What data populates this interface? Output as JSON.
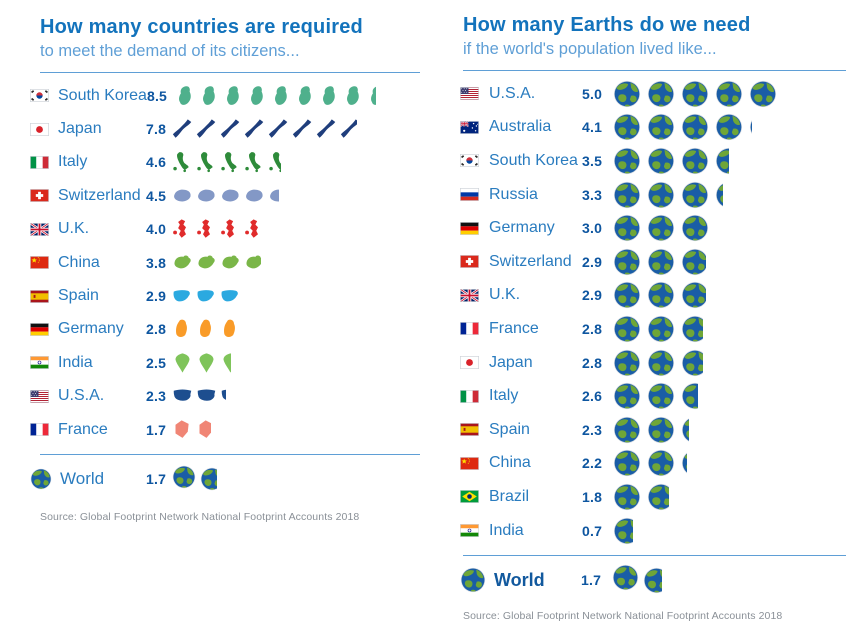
{
  "left_panel": {
    "title": "How many countries are required",
    "subtitle": "to meet the demand of its citizens...",
    "rows": [
      {
        "country": "South Korea",
        "value": "8.5",
        "flag": "south-korea",
        "icon": "korea-map",
        "color": "#4FB08C"
      },
      {
        "country": "Japan",
        "value": "7.8",
        "flag": "japan",
        "icon": "japan-map",
        "color": "#1F3E7C"
      },
      {
        "country": "Italy",
        "value": "4.6",
        "flag": "italy",
        "icon": "italy-map",
        "color": "#2E8B3A"
      },
      {
        "country": "Switzerland",
        "value": "4.5",
        "flag": "switzerland",
        "icon": "switzerland-map",
        "color": "#8398C6"
      },
      {
        "country": "U.K.",
        "value": "4.0",
        "flag": "uk",
        "icon": "uk-map",
        "color": "#E02B2B"
      },
      {
        "country": "China",
        "value": "3.8",
        "flag": "china",
        "icon": "china-map",
        "color": "#7AB648"
      },
      {
        "country": "Spain",
        "value": "2.9",
        "flag": "spain",
        "icon": "spain-map",
        "color": "#2BA9E0"
      },
      {
        "country": "Germany",
        "value": "2.8",
        "flag": "germany",
        "icon": "germany-map",
        "color": "#F99B28"
      },
      {
        "country": "India",
        "value": "2.5",
        "flag": "india",
        "icon": "india-map",
        "color": "#7FC45A"
      },
      {
        "country": "U.S.A.",
        "value": "2.3",
        "flag": "usa",
        "icon": "usa-map",
        "color": "#1D4E8F"
      },
      {
        "country": "France",
        "value": "1.7",
        "flag": "france",
        "icon": "france-map",
        "color": "#F08575"
      }
    ],
    "world": {
      "label": "World",
      "value": "1.7"
    },
    "source": "Source: Global Footprint Network National Footprint Accounts 2018"
  },
  "right_panel": {
    "title": "How many Earths do we need",
    "subtitle": "if the world's population lived like...",
    "rows": [
      {
        "country": "U.S.A.",
        "value": "5.0",
        "flag": "usa"
      },
      {
        "country": "Australia",
        "value": "4.1",
        "flag": "australia"
      },
      {
        "country": "South Korea",
        "value": "3.5",
        "flag": "south-korea"
      },
      {
        "country": "Russia",
        "value": "3.3",
        "flag": "russia"
      },
      {
        "country": "Germany",
        "value": "3.0",
        "flag": "germany"
      },
      {
        "country": "Switzerland",
        "value": "2.9",
        "flag": "switzerland"
      },
      {
        "country": "U.K.",
        "value": "2.9",
        "flag": "uk"
      },
      {
        "country": "France",
        "value": "2.8",
        "flag": "france"
      },
      {
        "country": "Japan",
        "value": "2.8",
        "flag": "japan"
      },
      {
        "country": "Italy",
        "value": "2.6",
        "flag": "italy"
      },
      {
        "country": "Spain",
        "value": "2.3",
        "flag": "spain"
      },
      {
        "country": "China",
        "value": "2.2",
        "flag": "china"
      },
      {
        "country": "Brazil",
        "value": "1.8",
        "flag": "brazil"
      },
      {
        "country": "India",
        "value": "0.7",
        "flag": "india"
      }
    ],
    "world": {
      "label": "World",
      "value": "1.7"
    },
    "source": "Source: Global Footprint Network National Footprint Accounts 2018"
  },
  "colors": {
    "title_blue": "#1373BC",
    "subtitle_blue": "#5F9FD6",
    "label_blue": "#2A7CBF",
    "value_blue": "#0E56A0",
    "rule_blue": "#5F9FD6",
    "source_gray": "#8A9097",
    "earth_ocean": "#1A5DA6",
    "earth_land": "#6FA637",
    "earth_ring": "#D7DCE1"
  },
  "chart_data": [
    {
      "type": "bar",
      "style": "pictogram",
      "title": "How many countries are required",
      "subtitle": "to meet the demand of its citizens...",
      "categories": [
        "South Korea",
        "Japan",
        "Italy",
        "Switzerland",
        "U.K.",
        "China",
        "Spain",
        "Germany",
        "India",
        "U.S.A.",
        "France",
        "World"
      ],
      "values": [
        8.5,
        7.8,
        4.6,
        4.5,
        4.0,
        3.8,
        2.9,
        2.8,
        2.5,
        2.3,
        1.7,
        1.7
      ],
      "unit": "countries per icon",
      "legend_position": "none",
      "source": "Source: Global Footprint Network National Footprint Accounts 2018"
    },
    {
      "type": "bar",
      "style": "pictogram",
      "title": "How many Earths do we need",
      "subtitle": "if the world's population lived like...",
      "categories": [
        "U.S.A.",
        "Australia",
        "South Korea",
        "Russia",
        "Germany",
        "Switzerland",
        "U.K.",
        "France",
        "Japan",
        "Italy",
        "Spain",
        "China",
        "Brazil",
        "India",
        "World"
      ],
      "values": [
        5.0,
        4.1,
        3.5,
        3.3,
        3.0,
        2.9,
        2.9,
        2.8,
        2.8,
        2.6,
        2.3,
        2.2,
        1.8,
        0.7,
        1.7
      ],
      "unit": "Earths per icon",
      "legend_position": "none",
      "source": "Source: Global Footprint Network National Footprint Accounts 2018"
    }
  ]
}
